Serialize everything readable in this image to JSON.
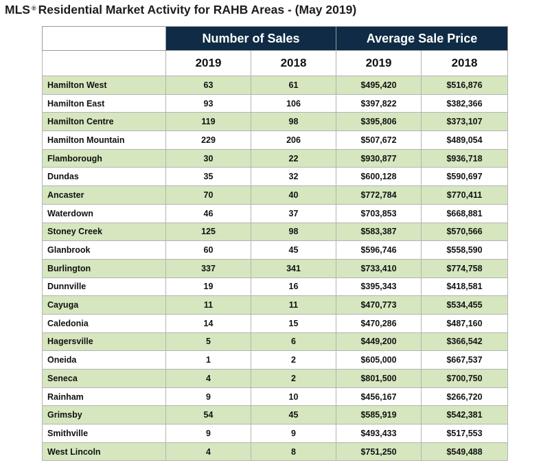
{
  "title": {
    "prefix": "MLS",
    "reg_mark": "®",
    "text": "Residential Market Activity for RAHB Areas - (May 2019)"
  },
  "table": {
    "group_headers": {
      "sales": "Number of Sales",
      "price": "Average Sale Price"
    },
    "year_headers": [
      "2019",
      "2018",
      "2019",
      "2018"
    ],
    "colors": {
      "header_bg": "#0f2b45",
      "shaded_row_bg": "#d6e6bf"
    },
    "rows": [
      {
        "area": "Hamilton West",
        "sales_2019": "63",
        "sales_2018": "61",
        "price_2019": "$495,420",
        "price_2018": "$516,876"
      },
      {
        "area": "Hamilton East",
        "sales_2019": "93",
        "sales_2018": "106",
        "price_2019": "$397,822",
        "price_2018": "$382,366"
      },
      {
        "area": "Hamilton Centre",
        "sales_2019": "119",
        "sales_2018": "98",
        "price_2019": "$395,806",
        "price_2018": "$373,107"
      },
      {
        "area": "Hamilton Mountain",
        "sales_2019": "229",
        "sales_2018": "206",
        "price_2019": "$507,672",
        "price_2018": "$489,054"
      },
      {
        "area": "Flamborough",
        "sales_2019": "30",
        "sales_2018": "22",
        "price_2019": "$930,877",
        "price_2018": "$936,718"
      },
      {
        "area": "Dundas",
        "sales_2019": "35",
        "sales_2018": "32",
        "price_2019": "$600,128",
        "price_2018": "$590,697"
      },
      {
        "area": "Ancaster",
        "sales_2019": "70",
        "sales_2018": "40",
        "price_2019": "$772,784",
        "price_2018": "$770,411"
      },
      {
        "area": "Waterdown",
        "sales_2019": "46",
        "sales_2018": "37",
        "price_2019": "$703,853",
        "price_2018": "$668,881"
      },
      {
        "area": "Stoney Creek",
        "sales_2019": "125",
        "sales_2018": "98",
        "price_2019": "$583,387",
        "price_2018": "$570,566"
      },
      {
        "area": "Glanbrook",
        "sales_2019": "60",
        "sales_2018": "45",
        "price_2019": "$596,746",
        "price_2018": "$558,590"
      },
      {
        "area": "Burlington",
        "sales_2019": "337",
        "sales_2018": "341",
        "price_2019": "$733,410",
        "price_2018": "$774,758"
      },
      {
        "area": "Dunnville",
        "sales_2019": "19",
        "sales_2018": "16",
        "price_2019": "$395,343",
        "price_2018": "$418,581"
      },
      {
        "area": "Cayuga",
        "sales_2019": "11",
        "sales_2018": "11",
        "price_2019": "$470,773",
        "price_2018": "$534,455"
      },
      {
        "area": "Caledonia",
        "sales_2019": "14",
        "sales_2018": "15",
        "price_2019": "$470,286",
        "price_2018": "$487,160"
      },
      {
        "area": "Hagersville",
        "sales_2019": "5",
        "sales_2018": "6",
        "price_2019": "$449,200",
        "price_2018": "$366,542"
      },
      {
        "area": "Oneida",
        "sales_2019": "1",
        "sales_2018": "2",
        "price_2019": "$605,000",
        "price_2018": "$667,537"
      },
      {
        "area": "Seneca",
        "sales_2019": "4",
        "sales_2018": "2",
        "price_2019": "$801,500",
        "price_2018": "$700,750"
      },
      {
        "area": "Rainham",
        "sales_2019": "9",
        "sales_2018": "10",
        "price_2019": "$456,167",
        "price_2018": "$266,720"
      },
      {
        "area": "Grimsby",
        "sales_2019": "54",
        "sales_2018": "45",
        "price_2019": "$585,919",
        "price_2018": "$542,381"
      },
      {
        "area": "Smithville",
        "sales_2019": "9",
        "sales_2018": "9",
        "price_2019": "$493,433",
        "price_2018": "$517,553"
      },
      {
        "area": "West Lincoln",
        "sales_2019": "4",
        "sales_2018": "8",
        "price_2019": "$751,250",
        "price_2018": "$549,488"
      }
    ]
  }
}
